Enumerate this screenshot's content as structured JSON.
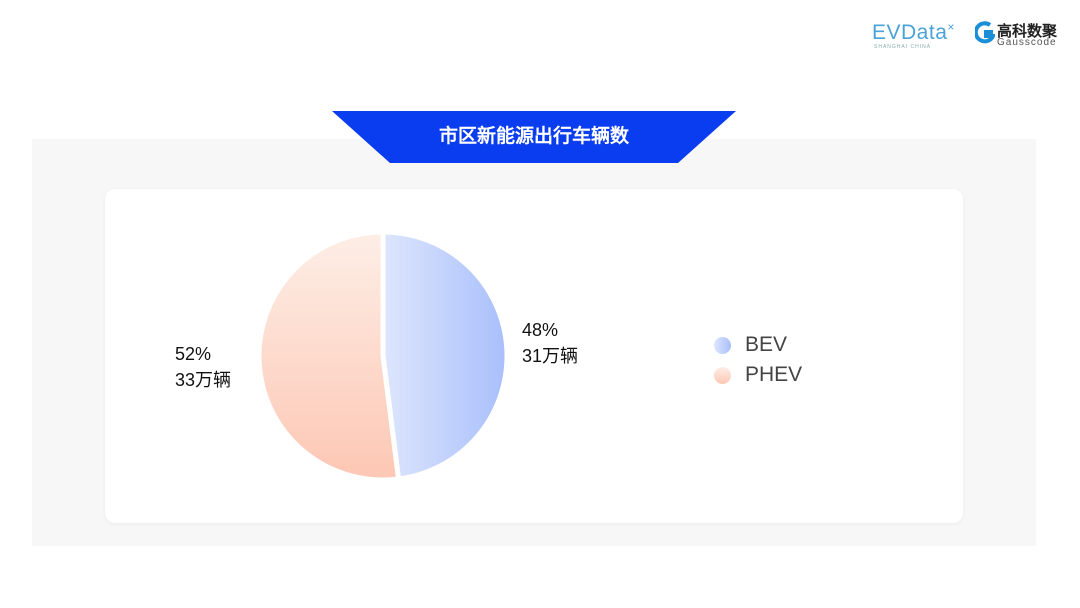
{
  "header": {
    "logo_evdata": "EVData",
    "logo_evdata_sub": "SHANGHAI CHINA",
    "logo_gauss_cn": "高科数聚",
    "logo_gauss_en": "Gausscode"
  },
  "title": "市区新能源出行车辆数",
  "colors": {
    "banner": "#0a3cf0",
    "bev": [
      "#dde6fc",
      "#a9bffc"
    ],
    "phev": [
      "#fdeee6",
      "#fdc7b4"
    ]
  },
  "chart_data": {
    "type": "pie",
    "title": "市区新能源出行车辆数",
    "slices": [
      {
        "name": "BEV",
        "percent": 48,
        "value_label": "31万辆",
        "percent_label": "48%"
      },
      {
        "name": "PHEV",
        "percent": 52,
        "value_label": "33万辆",
        "percent_label": "52%"
      }
    ],
    "legend": "right"
  }
}
